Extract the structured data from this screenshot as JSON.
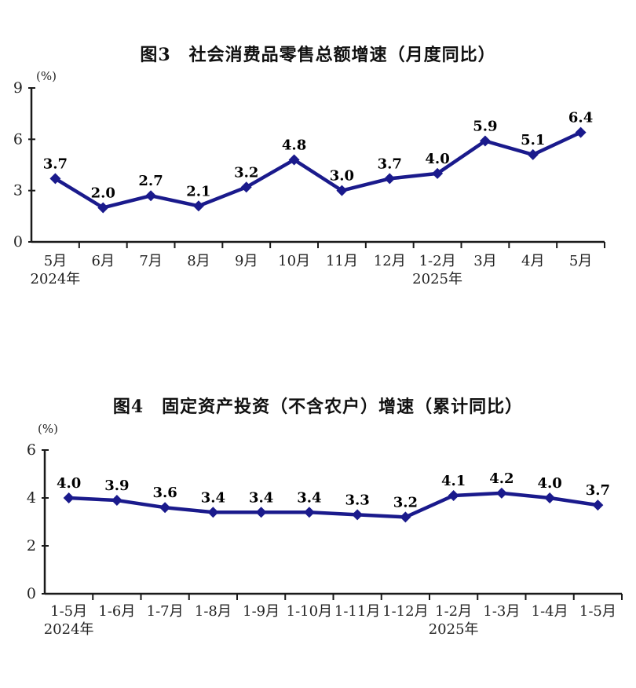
{
  "page": {
    "background": "#ffffff",
    "text_color": "#111111"
  },
  "chart_data": [
    {
      "type": "line",
      "title": "图3　社会消费品零售总额增速（月度同比）",
      "unit_label": "(%)",
      "categories": [
        "5月",
        "6月",
        "7月",
        "8月",
        "9月",
        "10月",
        "11月",
        "12月",
        "1-2月",
        "3月",
        "4月",
        "5月"
      ],
      "year_annotations": [
        {
          "index": 0,
          "label": "2024年"
        },
        {
          "index": 8,
          "label": "2025年"
        }
      ],
      "values": [
        3.7,
        2.0,
        2.7,
        2.1,
        3.2,
        4.8,
        3.0,
        3.7,
        4.0,
        5.9,
        5.1,
        6.4
      ],
      "ylim": [
        0,
        9
      ],
      "yticks": [
        0,
        3,
        6,
        9
      ],
      "line_color": "#1a1a8c",
      "marker": "diamond",
      "grid": false,
      "legend": "none"
    },
    {
      "type": "line",
      "title": "图4　固定资产投资（不含农户）增速（累计同比）",
      "unit_label": "(%)",
      "categories": [
        "1-5月",
        "1-6月",
        "1-7月",
        "1-8月",
        "1-9月",
        "1-10月",
        "1-11月",
        "1-12月",
        "1-2月",
        "1-3月",
        "1-4月",
        "1-5月"
      ],
      "year_annotations": [
        {
          "index": 0,
          "label": "2024年"
        },
        {
          "index": 8,
          "label": "2025年"
        }
      ],
      "values": [
        4.0,
        3.9,
        3.6,
        3.4,
        3.4,
        3.4,
        3.3,
        3.2,
        4.1,
        4.2,
        4.0,
        3.7
      ],
      "ylim": [
        0,
        6
      ],
      "yticks": [
        0,
        2,
        4,
        6
      ],
      "line_color": "#1a1a8c",
      "marker": "diamond",
      "grid": false,
      "legend": "none"
    }
  ]
}
